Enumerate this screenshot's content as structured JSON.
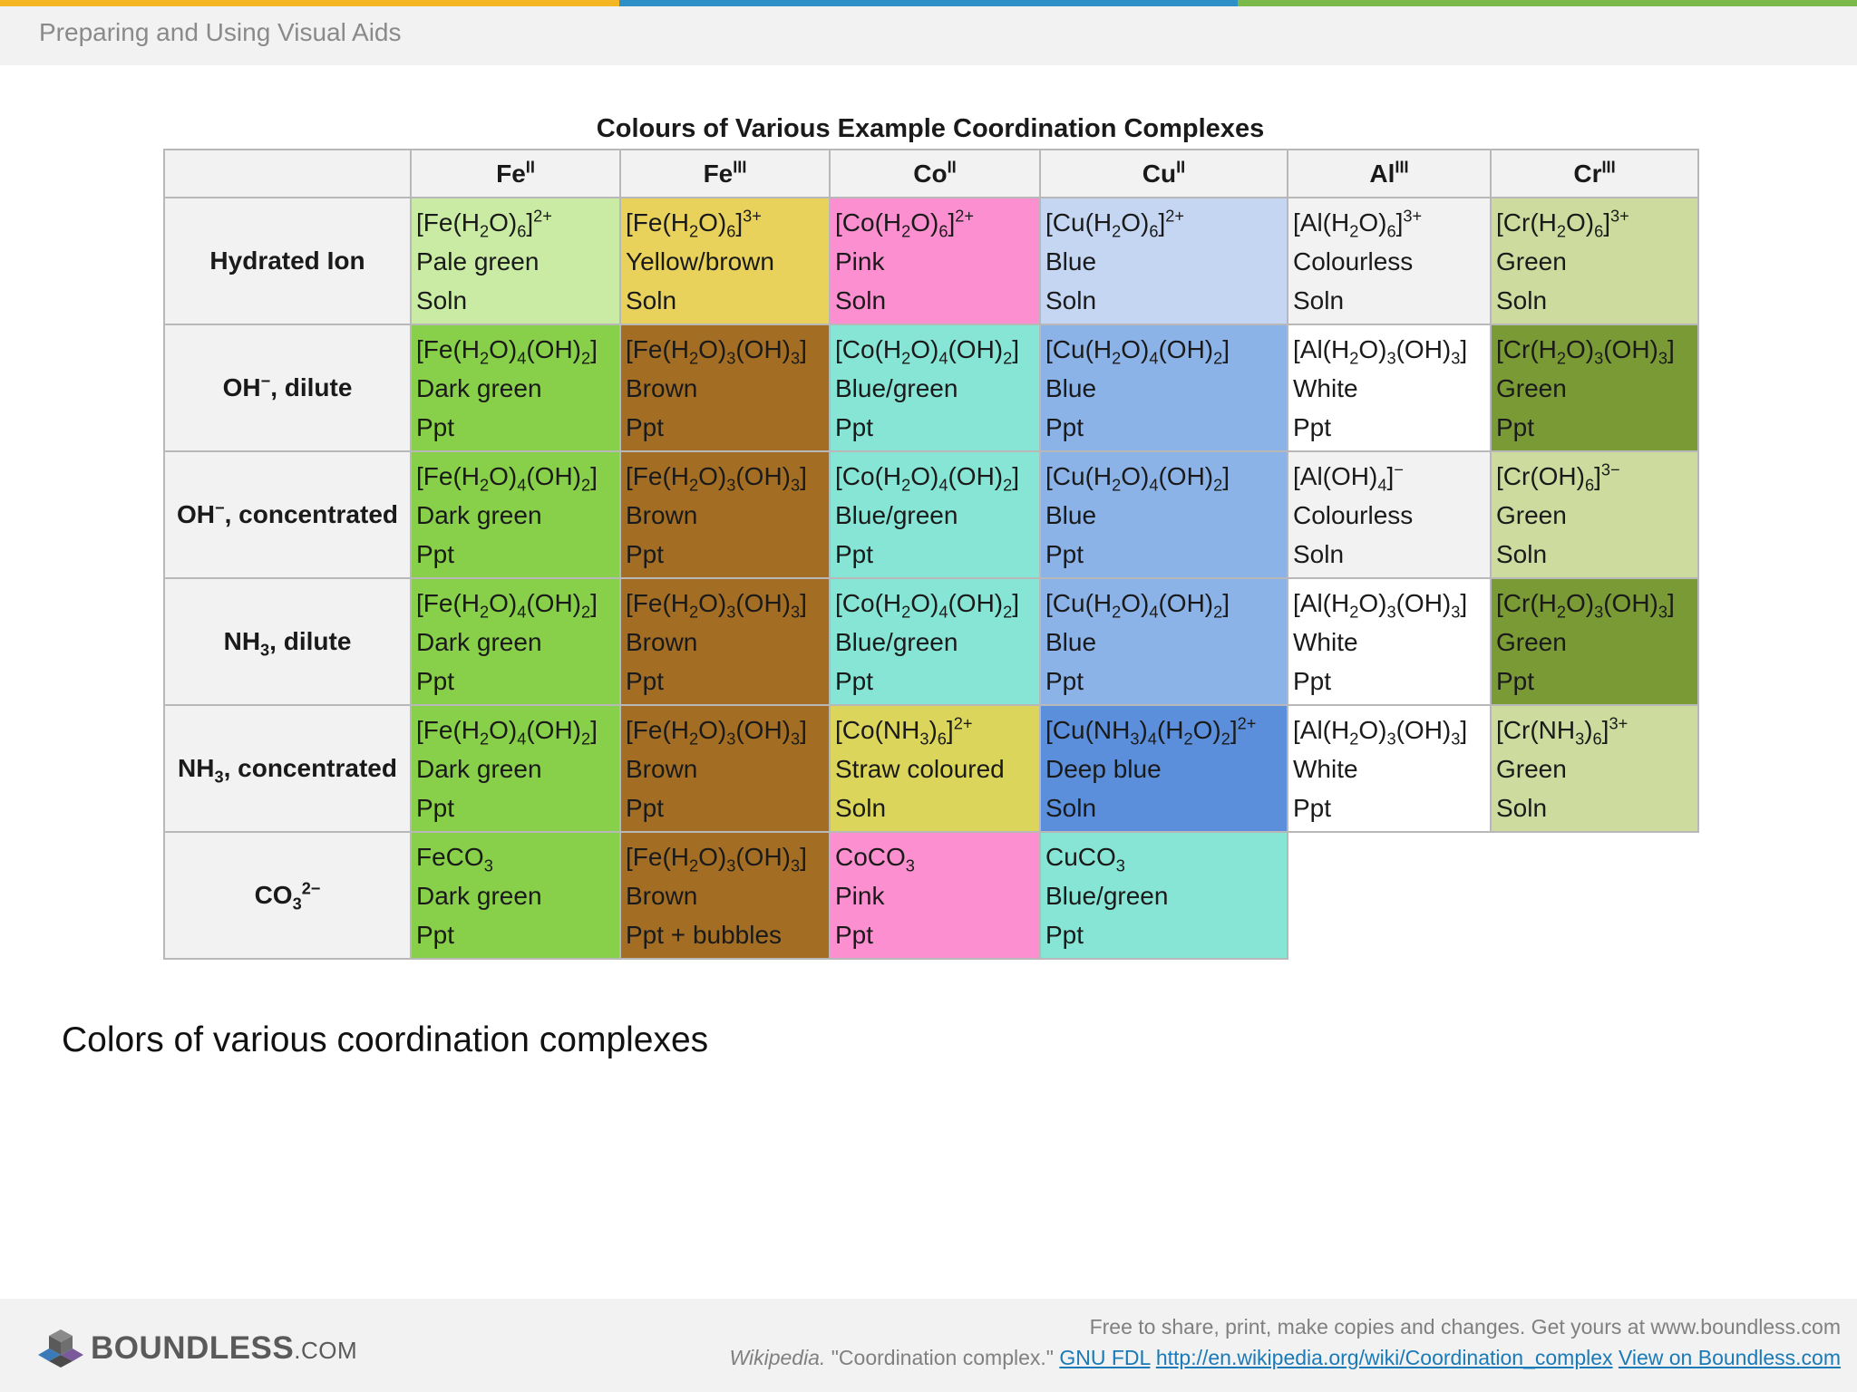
{
  "header": {
    "title": "Preparing and Using Visual Aids",
    "stripe_colors": [
      "#f5b624",
      "#2f8fc7",
      "#7ab94a"
    ]
  },
  "table": {
    "title": "Colours of Various Example Coordination Complexes",
    "columns": [
      {
        "base": "Fe",
        "sup": "II"
      },
      {
        "base": "Fe",
        "sup": "III"
      },
      {
        "base": "Co",
        "sup": "II"
      },
      {
        "base": "Cu",
        "sup": "II"
      },
      {
        "base": "Al",
        "sup": "III"
      },
      {
        "base": "Cr",
        "sup": "III"
      }
    ],
    "rows": [
      {
        "label": "Hydrated Ion",
        "cells": [
          {
            "formula": "[Fe(H<sub>2</sub>O)<sub>6</sub>]<sup>2+</sup>",
            "colour": "Pale green",
            "state": "Soln",
            "bg": "#c9eba3"
          },
          {
            "formula": "[Fe(H<sub>2</sub>O)<sub>6</sub>]<sup>3+</sup>",
            "colour": "Yellow/brown",
            "state": "Soln",
            "bg": "#e9d25c"
          },
          {
            "formula": "[Co(H<sub>2</sub>O)<sub>6</sub>]<sup>2+</sup>",
            "colour": "Pink",
            "state": "Soln",
            "bg": "#fb8fcf"
          },
          {
            "formula": "[Cu(H<sub>2</sub>O)<sub>6</sub>]<sup>2+</sup>",
            "colour": "Blue",
            "state": "Soln",
            "bg": "#c4d6f2"
          },
          {
            "formula": "[Al(H<sub>2</sub>O)<sub>6</sub>]<sup>3+</sup>",
            "colour": "Colourless",
            "state": "Soln",
            "bg": "#f2f2f2"
          },
          {
            "formula": "[Cr(H<sub>2</sub>O)<sub>6</sub>]<sup>3+</sup>",
            "colour": "Green",
            "state": "Soln",
            "bg": "#cddc9e"
          }
        ]
      },
      {
        "label": "OH<sup>&minus;</sup>, dilute",
        "cells": [
          {
            "formula": "[Fe(H<sub>2</sub>O)<sub>4</sub>(OH)<sub>2</sub>]",
            "colour": "Dark green",
            "state": "Ppt",
            "bg": "#88cf4a"
          },
          {
            "formula": "[Fe(H<sub>2</sub>O)<sub>3</sub>(OH)<sub>3</sub>]",
            "colour": "Brown",
            "state": "Ppt",
            "bg": "#a36e23"
          },
          {
            "formula": "[Co(H<sub>2</sub>O)<sub>4</sub>(OH)<sub>2</sub>]",
            "colour": "Blue/green",
            "state": "Ppt",
            "bg": "#86e5d5"
          },
          {
            "formula": "[Cu(H<sub>2</sub>O)<sub>4</sub>(OH)<sub>2</sub>]",
            "colour": "Blue",
            "state": "Ppt",
            "bg": "#8cb3e8"
          },
          {
            "formula": "[Al(H<sub>2</sub>O)<sub>3</sub>(OH)<sub>3</sub>]",
            "colour": "White",
            "state": "Ppt",
            "bg": "#ffffff"
          },
          {
            "formula": "[Cr(H<sub>2</sub>O)<sub>3</sub>(OH)<sub>3</sub>]",
            "colour": "Green",
            "state": "Ppt",
            "bg": "#7a9a36"
          }
        ]
      },
      {
        "label": "OH<sup>&minus;</sup>, concentrated",
        "cells": [
          {
            "formula": "[Fe(H<sub>2</sub>O)<sub>4</sub>(OH)<sub>2</sub>]",
            "colour": "Dark green",
            "state": "Ppt",
            "bg": "#88cf4a"
          },
          {
            "formula": "[Fe(H<sub>2</sub>O)<sub>3</sub>(OH)<sub>3</sub>]",
            "colour": "Brown",
            "state": "Ppt",
            "bg": "#a36e23"
          },
          {
            "formula": "[Co(H<sub>2</sub>O)<sub>4</sub>(OH)<sub>2</sub>]",
            "colour": "Blue/green",
            "state": "Ppt",
            "bg": "#86e5d5"
          },
          {
            "formula": "[Cu(H<sub>2</sub>O)<sub>4</sub>(OH)<sub>2</sub>]",
            "colour": "Blue",
            "state": "Ppt",
            "bg": "#8cb3e8"
          },
          {
            "formula": "[Al(OH)<sub>4</sub>]<sup>&minus;</sup>",
            "colour": "Colourless",
            "state": "Soln",
            "bg": "#f2f2f2"
          },
          {
            "formula": "[Cr(OH)<sub>6</sub>]<sup>3&minus;</sup>",
            "colour": "Green",
            "state": "Soln",
            "bg": "#cddc9e"
          }
        ]
      },
      {
        "label": "NH<sub>3</sub>, dilute",
        "cells": [
          {
            "formula": "[Fe(H<sub>2</sub>O)<sub>4</sub>(OH)<sub>2</sub>]",
            "colour": "Dark green",
            "state": "Ppt",
            "bg": "#88cf4a"
          },
          {
            "formula": "[Fe(H<sub>2</sub>O)<sub>3</sub>(OH)<sub>3</sub>]",
            "colour": "Brown",
            "state": "Ppt",
            "bg": "#a36e23"
          },
          {
            "formula": "[Co(H<sub>2</sub>O)<sub>4</sub>(OH)<sub>2</sub>]",
            "colour": "Blue/green",
            "state": "Ppt",
            "bg": "#86e5d5"
          },
          {
            "formula": "[Cu(H<sub>2</sub>O)<sub>4</sub>(OH)<sub>2</sub>]",
            "colour": "Blue",
            "state": "Ppt",
            "bg": "#8cb3e8"
          },
          {
            "formula": "[Al(H<sub>2</sub>O)<sub>3</sub>(OH)<sub>3</sub>]",
            "colour": "White",
            "state": "Ppt",
            "bg": "#ffffff"
          },
          {
            "formula": "[Cr(H<sub>2</sub>O)<sub>3</sub>(OH)<sub>3</sub>]",
            "colour": "Green",
            "state": "Ppt",
            "bg": "#7a9a36"
          }
        ]
      },
      {
        "label": "NH<sub>3</sub>, concentrated",
        "cells": [
          {
            "formula": "[Fe(H<sub>2</sub>O)<sub>4</sub>(OH)<sub>2</sub>]",
            "colour": "Dark green",
            "state": "Ppt",
            "bg": "#88cf4a"
          },
          {
            "formula": "[Fe(H<sub>2</sub>O)<sub>3</sub>(OH)<sub>3</sub>]",
            "colour": "Brown",
            "state": "Ppt",
            "bg": "#a36e23"
          },
          {
            "formula": "[Co(NH<sub>3</sub>)<sub>6</sub>]<sup>2+</sup>",
            "colour": "Straw coloured",
            "state": "Soln",
            "bg": "#dcd55c"
          },
          {
            "formula": "[Cu(NH<sub>3</sub>)<sub>4</sub>(H<sub>2</sub>O)<sub>2</sub>]<sup>2+</sup>",
            "colour": "Deep blue",
            "state": "Soln",
            "bg": "#5b8fdb"
          },
          {
            "formula": "[Al(H<sub>2</sub>O)<sub>3</sub>(OH)<sub>3</sub>]",
            "colour": "White",
            "state": "Ppt",
            "bg": "#ffffff"
          },
          {
            "formula": "[Cr(NH<sub>3</sub>)<sub>6</sub>]<sup>3+</sup>",
            "colour": "Green",
            "state": "Soln",
            "bg": "#cddc9e"
          }
        ]
      },
      {
        "label": "CO<sub>3</sub><sup>2&minus;</sup>",
        "cells": [
          {
            "formula": "FeCO<sub>3</sub>",
            "colour": "Dark green",
            "state": "Ppt",
            "bg": "#88cf4a"
          },
          {
            "formula": "[Fe(H<sub>2</sub>O)<sub>3</sub>(OH)<sub>3</sub>]",
            "colour": "Brown",
            "state": "Ppt + bubbles",
            "bg": "#a36e23"
          },
          {
            "formula": "CoCO<sub>3</sub>",
            "colour": "Pink",
            "state": "Ppt",
            "bg": "#fb8fcf"
          },
          {
            "formula": "CuCO<sub>3</sub>",
            "colour": "Blue/green",
            "state": "Ppt",
            "bg": "#86e5d5"
          },
          {
            "empty": true
          },
          {
            "empty": true
          }
        ]
      }
    ]
  },
  "caption": "Colors of various coordination complexes",
  "footer": {
    "logo_text": "BOUNDLESS",
    "logo_suffix": ".COM",
    "line1": "Free to share, print, make copies and changes. Get yours at www.boundless.com",
    "source_name": "Wikipedia.",
    "source_title": " \"Coordination complex.\" ",
    "license_link": "GNU FDL",
    "source_link": "http://en.wikipedia.org/wiki/Coordination_complex",
    "view_link": "View on Boundless.com"
  }
}
